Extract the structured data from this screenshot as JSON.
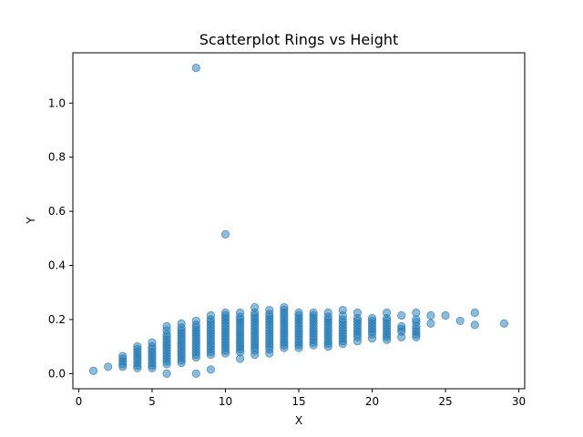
{
  "chart_data": {
    "type": "scatter",
    "title": "Scatterplot Rings vs Height",
    "xlabel": "X",
    "ylabel": "Y",
    "xlim": [
      -0.4,
      30.4
    ],
    "ylim": [
      -0.056,
      1.186
    ],
    "xticks": [
      0,
      5,
      10,
      15,
      20,
      25,
      30
    ],
    "yticks": [
      0.0,
      0.2,
      0.4,
      0.6,
      0.8,
      1.0
    ],
    "xtick_labels": [
      "0",
      "5",
      "10",
      "15",
      "20",
      "25",
      "30"
    ],
    "ytick_labels": [
      "0.0",
      "0.2",
      "0.4",
      "0.6",
      "0.8",
      "1.0"
    ],
    "grid": false,
    "marker_color": "#1f77b4",
    "marker_alpha": 0.5,
    "points": [
      [
        1,
        0.01
      ],
      [
        2,
        0.025
      ],
      [
        3,
        0.025
      ],
      [
        3,
        0.035
      ],
      [
        3,
        0.045
      ],
      [
        3,
        0.055
      ],
      [
        3,
        0.065
      ],
      [
        4,
        0.02
      ],
      [
        4,
        0.03
      ],
      [
        4,
        0.04
      ],
      [
        4,
        0.05
      ],
      [
        4,
        0.06
      ],
      [
        4,
        0.07
      ],
      [
        4,
        0.08
      ],
      [
        4,
        0.09
      ],
      [
        4,
        0.1
      ],
      [
        5,
        0.02
      ],
      [
        5,
        0.03
      ],
      [
        5,
        0.04
      ],
      [
        5,
        0.05
      ],
      [
        5,
        0.06
      ],
      [
        5,
        0.07
      ],
      [
        5,
        0.08
      ],
      [
        5,
        0.09
      ],
      [
        5,
        0.1
      ],
      [
        5,
        0.115
      ],
      [
        6,
        0.0
      ],
      [
        6,
        0.035
      ],
      [
        6,
        0.045
      ],
      [
        6,
        0.055
      ],
      [
        6,
        0.065
      ],
      [
        6,
        0.075
      ],
      [
        6,
        0.085
      ],
      [
        6,
        0.095
      ],
      [
        6,
        0.105
      ],
      [
        6,
        0.115
      ],
      [
        6,
        0.125
      ],
      [
        6,
        0.135
      ],
      [
        6,
        0.145
      ],
      [
        6,
        0.16
      ],
      [
        6,
        0.175
      ],
      [
        7,
        0.04
      ],
      [
        7,
        0.05
      ],
      [
        7,
        0.06
      ],
      [
        7,
        0.07
      ],
      [
        7,
        0.08
      ],
      [
        7,
        0.09
      ],
      [
        7,
        0.1
      ],
      [
        7,
        0.11
      ],
      [
        7,
        0.12
      ],
      [
        7,
        0.13
      ],
      [
        7,
        0.14
      ],
      [
        7,
        0.15
      ],
      [
        7,
        0.16
      ],
      [
        7,
        0.17
      ],
      [
        7,
        0.185
      ],
      [
        8,
        0.0
      ],
      [
        8,
        0.06
      ],
      [
        8,
        0.07
      ],
      [
        8,
        0.08
      ],
      [
        8,
        0.09
      ],
      [
        8,
        0.1
      ],
      [
        8,
        0.11
      ],
      [
        8,
        0.12
      ],
      [
        8,
        0.13
      ],
      [
        8,
        0.14
      ],
      [
        8,
        0.15
      ],
      [
        8,
        0.16
      ],
      [
        8,
        0.17
      ],
      [
        8,
        0.18
      ],
      [
        8,
        0.195
      ],
      [
        8,
        1.13
      ],
      [
        9,
        0.015
      ],
      [
        9,
        0.07
      ],
      [
        9,
        0.08
      ],
      [
        9,
        0.09
      ],
      [
        9,
        0.1
      ],
      [
        9,
        0.11
      ],
      [
        9,
        0.12
      ],
      [
        9,
        0.13
      ],
      [
        9,
        0.14
      ],
      [
        9,
        0.15
      ],
      [
        9,
        0.16
      ],
      [
        9,
        0.17
      ],
      [
        9,
        0.18
      ],
      [
        9,
        0.19
      ],
      [
        9,
        0.2
      ],
      [
        9,
        0.215
      ],
      [
        10,
        0.075
      ],
      [
        10,
        0.085
      ],
      [
        10,
        0.095
      ],
      [
        10,
        0.105
      ],
      [
        10,
        0.115
      ],
      [
        10,
        0.125
      ],
      [
        10,
        0.135
      ],
      [
        10,
        0.145
      ],
      [
        10,
        0.155
      ],
      [
        10,
        0.165
      ],
      [
        10,
        0.175
      ],
      [
        10,
        0.185
      ],
      [
        10,
        0.195
      ],
      [
        10,
        0.205
      ],
      [
        10,
        0.215
      ],
      [
        10,
        0.225
      ],
      [
        10,
        0.515
      ],
      [
        11,
        0.055
      ],
      [
        11,
        0.08
      ],
      [
        11,
        0.09
      ],
      [
        11,
        0.1
      ],
      [
        11,
        0.11
      ],
      [
        11,
        0.12
      ],
      [
        11,
        0.13
      ],
      [
        11,
        0.14
      ],
      [
        11,
        0.15
      ],
      [
        11,
        0.16
      ],
      [
        11,
        0.17
      ],
      [
        11,
        0.18
      ],
      [
        11,
        0.19
      ],
      [
        11,
        0.2
      ],
      [
        11,
        0.21
      ],
      [
        11,
        0.225
      ],
      [
        12,
        0.07
      ],
      [
        12,
        0.085
      ],
      [
        12,
        0.095
      ],
      [
        12,
        0.105
      ],
      [
        12,
        0.115
      ],
      [
        12,
        0.125
      ],
      [
        12,
        0.135
      ],
      [
        12,
        0.145
      ],
      [
        12,
        0.155
      ],
      [
        12,
        0.165
      ],
      [
        12,
        0.175
      ],
      [
        12,
        0.185
      ],
      [
        12,
        0.195
      ],
      [
        12,
        0.205
      ],
      [
        12,
        0.215
      ],
      [
        12,
        0.225
      ],
      [
        12,
        0.245
      ],
      [
        13,
        0.075
      ],
      [
        13,
        0.09
      ],
      [
        13,
        0.1
      ],
      [
        13,
        0.11
      ],
      [
        13,
        0.12
      ],
      [
        13,
        0.13
      ],
      [
        13,
        0.14
      ],
      [
        13,
        0.15
      ],
      [
        13,
        0.16
      ],
      [
        13,
        0.17
      ],
      [
        13,
        0.18
      ],
      [
        13,
        0.19
      ],
      [
        13,
        0.2
      ],
      [
        13,
        0.21
      ],
      [
        13,
        0.22
      ],
      [
        13,
        0.235
      ],
      [
        14,
        0.095
      ],
      [
        14,
        0.105
      ],
      [
        14,
        0.115
      ],
      [
        14,
        0.125
      ],
      [
        14,
        0.135
      ],
      [
        14,
        0.145
      ],
      [
        14,
        0.155
      ],
      [
        14,
        0.165
      ],
      [
        14,
        0.175
      ],
      [
        14,
        0.185
      ],
      [
        14,
        0.195
      ],
      [
        14,
        0.205
      ],
      [
        14,
        0.215
      ],
      [
        14,
        0.225
      ],
      [
        14,
        0.235
      ],
      [
        14,
        0.245
      ],
      [
        15,
        0.095
      ],
      [
        15,
        0.105
      ],
      [
        15,
        0.115
      ],
      [
        15,
        0.125
      ],
      [
        15,
        0.135
      ],
      [
        15,
        0.145
      ],
      [
        15,
        0.155
      ],
      [
        15,
        0.165
      ],
      [
        15,
        0.175
      ],
      [
        15,
        0.185
      ],
      [
        15,
        0.195
      ],
      [
        15,
        0.205
      ],
      [
        15,
        0.215
      ],
      [
        15,
        0.225
      ],
      [
        16,
        0.105
      ],
      [
        16,
        0.115
      ],
      [
        16,
        0.125
      ],
      [
        16,
        0.135
      ],
      [
        16,
        0.145
      ],
      [
        16,
        0.155
      ],
      [
        16,
        0.165
      ],
      [
        16,
        0.175
      ],
      [
        16,
        0.185
      ],
      [
        16,
        0.195
      ],
      [
        16,
        0.205
      ],
      [
        16,
        0.215
      ],
      [
        16,
        0.225
      ],
      [
        17,
        0.1
      ],
      [
        17,
        0.11
      ],
      [
        17,
        0.12
      ],
      [
        17,
        0.13
      ],
      [
        17,
        0.14
      ],
      [
        17,
        0.15
      ],
      [
        17,
        0.16
      ],
      [
        17,
        0.17
      ],
      [
        17,
        0.18
      ],
      [
        17,
        0.19
      ],
      [
        17,
        0.2
      ],
      [
        17,
        0.21
      ],
      [
        17,
        0.225
      ],
      [
        18,
        0.11
      ],
      [
        18,
        0.12
      ],
      [
        18,
        0.13
      ],
      [
        18,
        0.14
      ],
      [
        18,
        0.15
      ],
      [
        18,
        0.16
      ],
      [
        18,
        0.17
      ],
      [
        18,
        0.18
      ],
      [
        18,
        0.19
      ],
      [
        18,
        0.2
      ],
      [
        18,
        0.215
      ],
      [
        18,
        0.235
      ],
      [
        19,
        0.12
      ],
      [
        19,
        0.135
      ],
      [
        19,
        0.145
      ],
      [
        19,
        0.155
      ],
      [
        19,
        0.165
      ],
      [
        19,
        0.175
      ],
      [
        19,
        0.185
      ],
      [
        19,
        0.195
      ],
      [
        19,
        0.205
      ],
      [
        19,
        0.225
      ],
      [
        20,
        0.13
      ],
      [
        20,
        0.145
      ],
      [
        20,
        0.155
      ],
      [
        20,
        0.165
      ],
      [
        20,
        0.175
      ],
      [
        20,
        0.185
      ],
      [
        20,
        0.195
      ],
      [
        20,
        0.205
      ],
      [
        21,
        0.125
      ],
      [
        21,
        0.135
      ],
      [
        21,
        0.145
      ],
      [
        21,
        0.155
      ],
      [
        21,
        0.165
      ],
      [
        21,
        0.175
      ],
      [
        21,
        0.185
      ],
      [
        21,
        0.195
      ],
      [
        21,
        0.205
      ],
      [
        21,
        0.225
      ],
      [
        22,
        0.135
      ],
      [
        22,
        0.155
      ],
      [
        22,
        0.165
      ],
      [
        22,
        0.175
      ],
      [
        22,
        0.215
      ],
      [
        23,
        0.135
      ],
      [
        23,
        0.145
      ],
      [
        23,
        0.155
      ],
      [
        23,
        0.165
      ],
      [
        23,
        0.175
      ],
      [
        23,
        0.19
      ],
      [
        23,
        0.2
      ],
      [
        23,
        0.225
      ],
      [
        24,
        0.185
      ],
      [
        24,
        0.215
      ],
      [
        25,
        0.215
      ],
      [
        26,
        0.195
      ],
      [
        27,
        0.18
      ],
      [
        27,
        0.225
      ],
      [
        29,
        0.185
      ]
    ]
  }
}
